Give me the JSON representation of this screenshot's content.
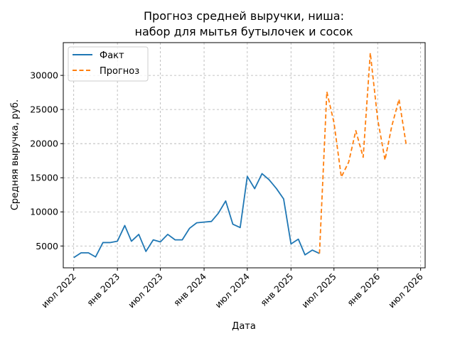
{
  "chart_data": {
    "type": "line",
    "title_lines": [
      "Прогноз средней выручки, ниша:",
      "набор для мытья бутылочек и сосок"
    ],
    "xlabel": "Дата",
    "ylabel": "Средняя выручка, руб.",
    "xlim": [
      "2022-05-18",
      "2026-07-20"
    ],
    "ylim": [
      1800,
      34800
    ],
    "x_ticks": [
      {
        "date": "2022-07-01",
        "label": "июл 2022"
      },
      {
        "date": "2023-01-01",
        "label": "янв 2023"
      },
      {
        "date": "2023-07-01",
        "label": "июл 2023"
      },
      {
        "date": "2024-01-01",
        "label": "янв 2024"
      },
      {
        "date": "2024-07-01",
        "label": "июл 2024"
      },
      {
        "date": "2025-01-01",
        "label": "янв 2025"
      },
      {
        "date": "2025-07-01",
        "label": "июл 2025"
      },
      {
        "date": "2026-01-01",
        "label": "янв 2026"
      },
      {
        "date": "2026-07-01",
        "label": "июл 2026"
      }
    ],
    "y_ticks": [
      {
        "value": 5000,
        "label": "5000"
      },
      {
        "value": 10000,
        "label": "10000"
      },
      {
        "value": 15000,
        "label": "15000"
      },
      {
        "value": 20000,
        "label": "20000"
      },
      {
        "value": 25000,
        "label": "25000"
      },
      {
        "value": 30000,
        "label": "30000"
      }
    ],
    "grid": true,
    "legend_position": "top-left",
    "series": [
      {
        "name": "Факт",
        "color": "#1f77b4",
        "style": "solid",
        "points": [
          [
            "2022-07-01",
            3300
          ],
          [
            "2022-08-01",
            4000
          ],
          [
            "2022-09-01",
            4000
          ],
          [
            "2022-10-01",
            3400
          ],
          [
            "2022-11-01",
            5500
          ],
          [
            "2022-12-01",
            5500
          ],
          [
            "2023-01-01",
            5700
          ],
          [
            "2023-02-01",
            8000
          ],
          [
            "2023-03-01",
            5700
          ],
          [
            "2023-04-01",
            6700
          ],
          [
            "2023-05-01",
            4200
          ],
          [
            "2023-06-01",
            5900
          ],
          [
            "2023-07-01",
            5600
          ],
          [
            "2023-08-01",
            6700
          ],
          [
            "2023-09-01",
            5900
          ],
          [
            "2023-10-01",
            5900
          ],
          [
            "2023-11-01",
            7600
          ],
          [
            "2023-12-01",
            8400
          ],
          [
            "2024-01-01",
            8500
          ],
          [
            "2024-02-01",
            8600
          ],
          [
            "2024-03-01",
            9800
          ],
          [
            "2024-04-01",
            11600
          ],
          [
            "2024-05-01",
            8200
          ],
          [
            "2024-06-01",
            7700
          ],
          [
            "2024-07-01",
            15200
          ],
          [
            "2024-08-01",
            13400
          ],
          [
            "2024-09-01",
            15600
          ],
          [
            "2024-10-01",
            14700
          ],
          [
            "2024-11-01",
            13400
          ],
          [
            "2024-12-01",
            11900
          ],
          [
            "2025-01-01",
            5300
          ],
          [
            "2025-02-01",
            6000
          ],
          [
            "2025-03-01",
            3700
          ],
          [
            "2025-04-01",
            4400
          ],
          [
            "2025-05-01",
            3900
          ]
        ]
      },
      {
        "name": "Прогноз",
        "color": "#ff7f0e",
        "style": "dashed",
        "points": [
          [
            "2025-05-01",
            3900
          ],
          [
            "2025-06-01",
            27600
          ],
          [
            "2025-07-01",
            23100
          ],
          [
            "2025-08-01",
            15100
          ],
          [
            "2025-09-01",
            17300
          ],
          [
            "2025-10-01",
            21900
          ],
          [
            "2025-11-01",
            18000
          ],
          [
            "2025-12-01",
            33300
          ],
          [
            "2026-01-01",
            23600
          ],
          [
            "2026-02-01",
            17600
          ],
          [
            "2026-03-01",
            22500
          ],
          [
            "2026-04-01",
            26500
          ],
          [
            "2026-05-01",
            19900
          ]
        ]
      }
    ]
  }
}
